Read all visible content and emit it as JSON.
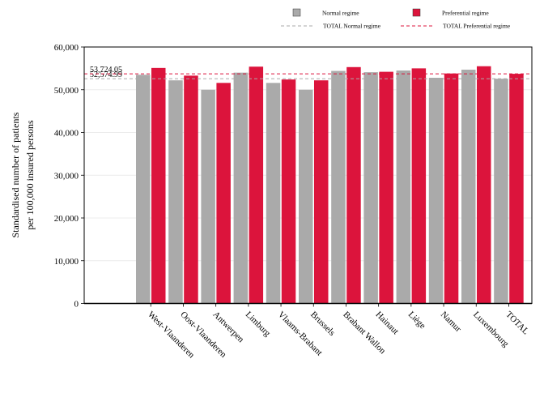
{
  "chart_data": {
    "type": "bar",
    "ylabel_lines": [
      "Standardised number of patients",
      "per 100,000 insured persons"
    ],
    "xlabel": "",
    "ylim": [
      0,
      60000
    ],
    "yticks": [
      0,
      10000,
      20000,
      30000,
      40000,
      50000,
      60000
    ],
    "ytick_labels": [
      "0",
      "10,000",
      "20,000",
      "30,000",
      "40,000",
      "50,000",
      "60,000"
    ],
    "grid": true,
    "legend_position": "top-right",
    "categories": [
      "West-Vlaanderen",
      "Oost-Vlaanderen",
      "Antwerpen",
      "Limburg",
      "Vlaams-Brabant",
      "Brussels",
      "Brabant Wallon",
      "Hainaut",
      "Liège",
      "Namur",
      "Luxembourg",
      "TOTAL"
    ],
    "series": [
      {
        "name": "Normal regime",
        "color": "#aaaaaa",
        "values": [
          53500,
          52200,
          50000,
          54000,
          51600,
          50000,
          54400,
          54100,
          54500,
          52800,
          54700,
          52574.99
        ]
      },
      {
        "name": "Preferential regime",
        "color": "#dc143c",
        "values": [
          55100,
          53300,
          51600,
          55400,
          52400,
          52200,
          55300,
          54200,
          55000,
          53800,
          55500,
          53724.05
        ]
      }
    ],
    "reference_lines": [
      {
        "name": "TOTAL Normal regime",
        "value": 52574.99,
        "label": "52,574.99",
        "color": "#aaaaaa",
        "style": "dashed"
      },
      {
        "name": "TOTAL Preferential regime",
        "value": 53724.05,
        "label": "53,724.05",
        "color": "#dc143c",
        "style": "dashed"
      }
    ]
  }
}
